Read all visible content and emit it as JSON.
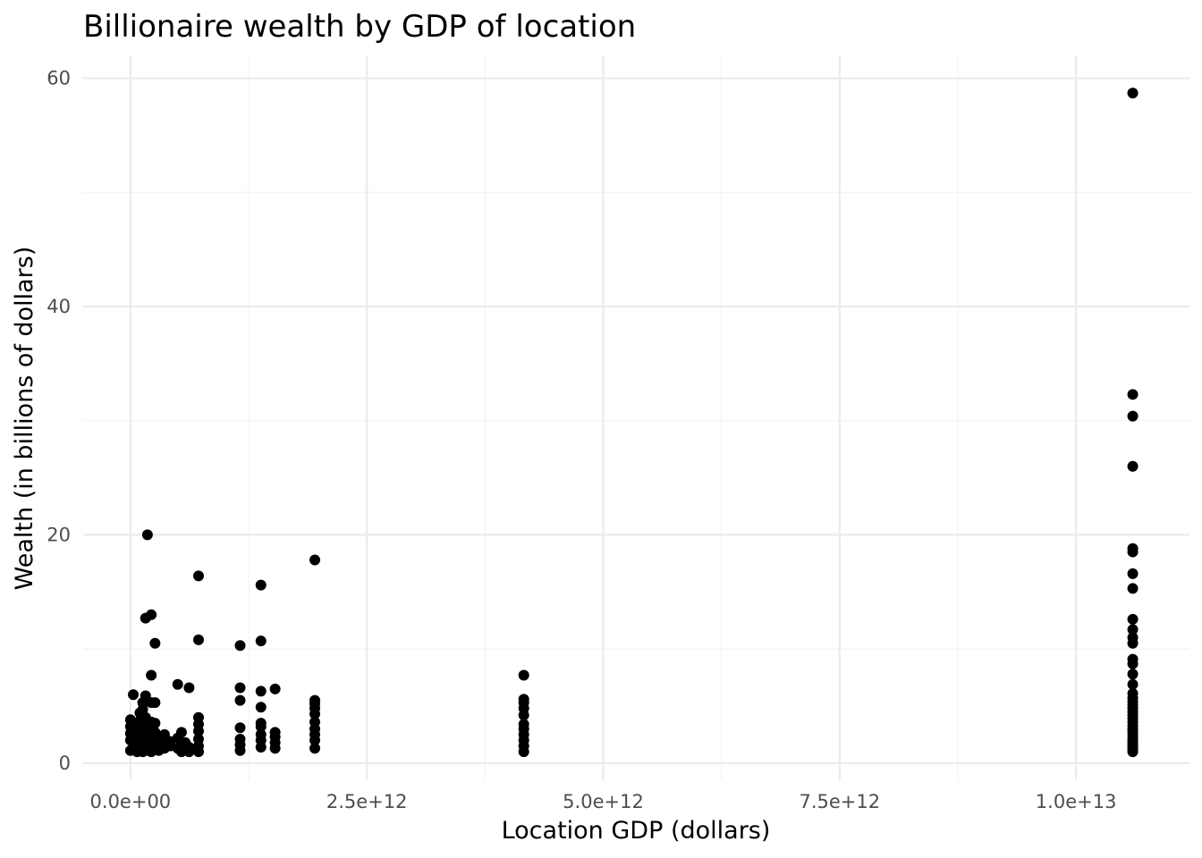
{
  "chart_data": {
    "type": "scatter",
    "title": "Billionaire wealth by GDP of location",
    "xlabel": "Location GDP (dollars)",
    "ylabel": "Wealth (in billions of dollars)",
    "xlim": [
      -500000000000,
      11200000000000
    ],
    "ylim": [
      -1.5,
      62
    ],
    "x_ticks": [
      0,
      2500000000000,
      5000000000000,
      7500000000000,
      10000000000000
    ],
    "x_tick_labels": [
      "0.0e+00",
      "2.5e+12",
      "5.0e+12",
      "7.5e+12",
      "1.0e+13"
    ],
    "y_ticks": [
      0,
      20,
      40,
      60
    ],
    "y_tick_labels": [
      "0",
      "20",
      "40",
      "60"
    ],
    "grid": true,
    "legend": "none",
    "point_color": "#000000",
    "x_groups": [
      {
        "x": 0,
        "y": [
          1.1,
          2.0,
          2.6,
          3.2,
          3.8
        ]
      },
      {
        "x": 30000000000,
        "y": [
          1.3,
          2.4,
          6.0
        ]
      },
      {
        "x": 70000000000,
        "y": [
          1.0,
          1.6,
          2.9,
          3.5
        ]
      },
      {
        "x": 100000000000,
        "y": [
          1.2,
          1.9,
          2.5,
          3.1,
          3.7,
          4.4
        ]
      },
      {
        "x": 130000000000,
        "y": [
          1.0,
          1.5,
          2.2,
          2.8,
          3.4,
          4.7,
          5.3
        ]
      },
      {
        "x": 160000000000,
        "y": [
          1.1,
          1.8,
          2.6,
          3.3,
          4.0,
          5.9,
          12.7
        ]
      },
      {
        "x": 180000000000,
        "y": [
          1.4,
          2.1,
          3.0,
          20.0
        ]
      },
      {
        "x": 220000000000,
        "y": [
          1.0,
          1.6,
          2.3,
          3.6,
          5.3,
          7.7,
          13.0
        ]
      },
      {
        "x": 260000000000,
        "y": [
          1.2,
          1.9,
          2.7,
          3.5,
          5.3,
          10.5
        ]
      },
      {
        "x": 300000000000,
        "y": [
          1.1,
          1.6,
          2.3
        ]
      },
      {
        "x": 360000000000,
        "y": [
          1.3,
          2.0,
          2.5
        ]
      },
      {
        "x": 420000000000,
        "y": [
          1.5,
          1.9
        ]
      },
      {
        "x": 500000000000,
        "y": [
          1.3,
          2.2,
          6.9
        ]
      },
      {
        "x": 540000000000,
        "y": [
          1.0,
          1.6,
          2.7
        ]
      },
      {
        "x": 580000000000,
        "y": [
          1.2,
          1.8
        ]
      },
      {
        "x": 620000000000,
        "y": [
          1.0,
          1.4,
          6.6
        ]
      },
      {
        "x": 720000000000,
        "y": [
          1.0,
          1.5,
          2.1,
          2.8,
          3.4,
          4.0,
          10.8,
          16.4
        ]
      },
      {
        "x": 1160000000000,
        "y": [
          1.1,
          1.6,
          2.1,
          3.1,
          5.5,
          6.6,
          10.3
        ]
      },
      {
        "x": 1380000000000,
        "y": [
          1.4,
          2.0,
          2.5,
          3.2,
          3.5,
          4.9,
          6.3,
          10.7,
          15.6
        ]
      },
      {
        "x": 1530000000000,
        "y": [
          1.3,
          1.8,
          2.3,
          2.7,
          6.5
        ]
      },
      {
        "x": 1950000000000,
        "y": [
          1.3,
          2.0,
          2.5,
          3.0,
          3.6,
          4.3,
          4.8,
          5.2,
          5.5,
          17.8
        ]
      },
      {
        "x": 4160000000000,
        "y": [
          1.0,
          1.5,
          2.0,
          2.5,
          3.0,
          3.4,
          4.2,
          4.8,
          5.3,
          5.6,
          7.7
        ]
      },
      {
        "x": 10600000000000,
        "y": [
          1.0,
          1.2,
          1.4,
          1.6,
          1.8,
          2.0,
          2.2,
          2.5,
          2.8,
          3.0,
          3.3,
          3.6,
          3.9,
          4.2,
          4.5,
          4.8,
          5.1,
          5.4,
          5.7,
          6.1,
          6.9,
          7.8,
          8.7,
          9.1,
          10.5,
          11.0,
          11.7,
          12.6,
          15.3,
          16.6,
          18.5,
          18.8,
          26.0,
          30.4,
          32.3,
          58.7
        ]
      }
    ]
  }
}
